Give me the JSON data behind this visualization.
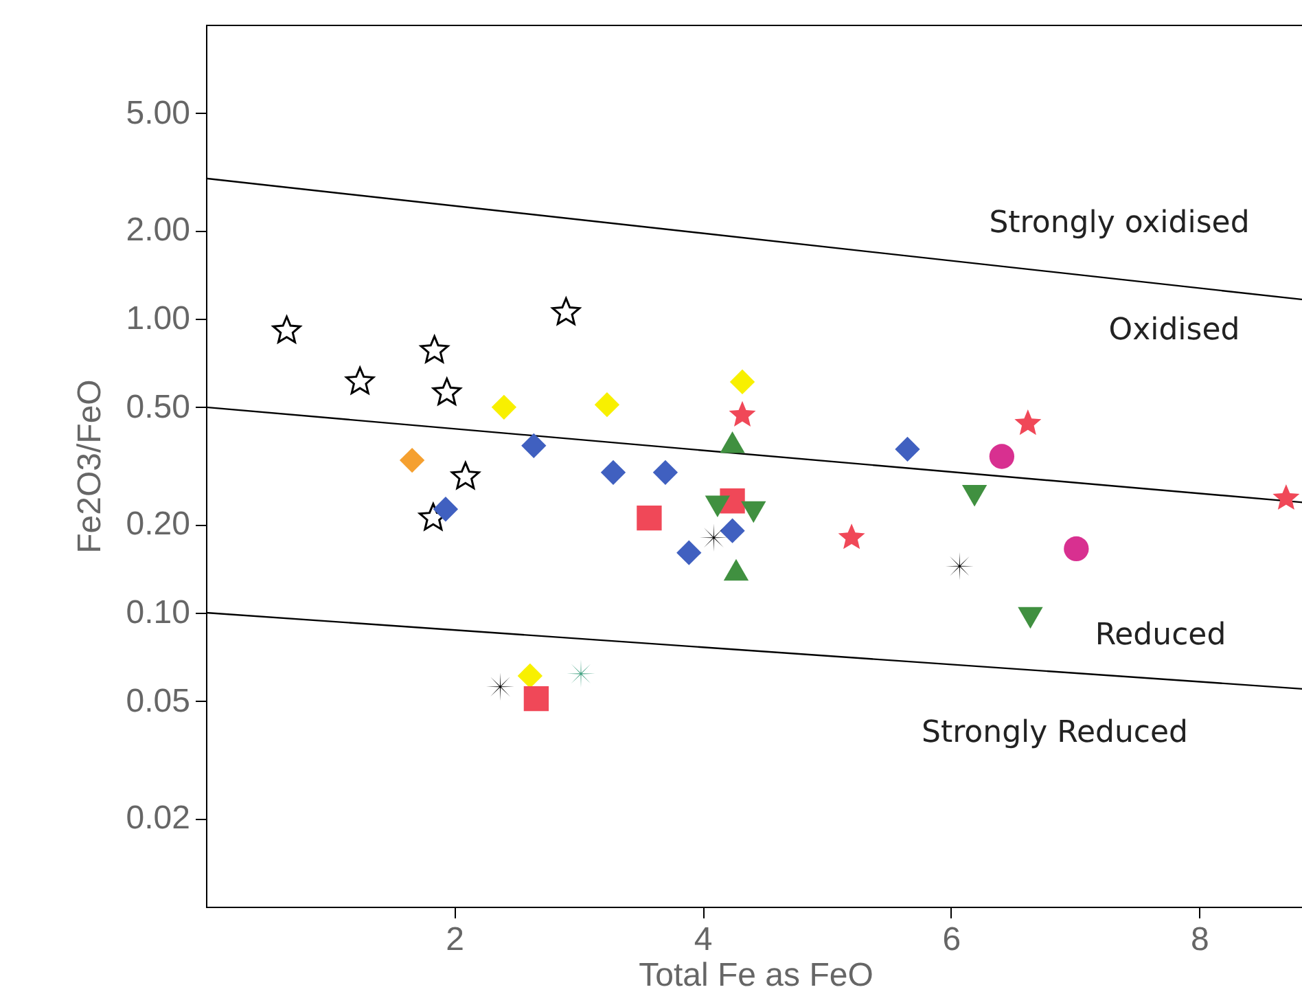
{
  "chart_data": {
    "type": "scatter",
    "xlabel": "Total Fe as FeO",
    "ylabel": "Fe2O3/FeO",
    "log": "y",
    "grid": false,
    "xlim": [
      0,
      8.85
    ],
    "xticks": [
      2,
      4,
      6,
      8
    ],
    "ylim": [
      0.01,
      10
    ],
    "yticks": [
      {
        "value": 0.02,
        "label": "0.02"
      },
      {
        "value": 0.05,
        "label": "0.05"
      },
      {
        "value": 0.1,
        "label": "0.10"
      },
      {
        "value": 0.2,
        "label": "0.20"
      },
      {
        "value": 0.5,
        "label": "0.50"
      },
      {
        "value": 1,
        "label": "1.00"
      },
      {
        "value": 2,
        "label": "2.00"
      },
      {
        "value": 5,
        "label": "5.00"
      }
    ],
    "series": [
      {
        "type": "line",
        "marker": "none",
        "line_style": "solid",
        "color": "#000000",
        "x": [
          0,
          8.85
        ],
        "values": [
          3.0,
          1.16
        ]
      },
      {
        "type": "line",
        "marker": "none",
        "line_style": "solid",
        "color": "#000000",
        "x": [
          0,
          8.85
        ],
        "values": [
          0.5,
          0.237
        ]
      },
      {
        "type": "line",
        "marker": "none",
        "line_style": "solid",
        "color": "#000000",
        "x": [
          0,
          8.85
        ],
        "values": [
          0.1,
          0.055
        ]
      },
      {
        "marker": "star",
        "color": "#ffffff",
        "x": [
          0.65,
          1.24,
          1.84,
          1.94,
          2.09,
          1.83,
          2.9
        ],
        "values": [
          0.91,
          0.61,
          0.78,
          0.56,
          0.29,
          0.21,
          1.05
        ]
      },
      {
        "marker": "diamond",
        "color": "#f5a030",
        "x": [
          1.66
        ],
        "values": [
          0.33
        ]
      },
      {
        "marker": "diamond",
        "color": "#f8f000",
        "x": [
          2.4,
          3.23,
          4.32,
          2.61
        ],
        "values": [
          0.5,
          0.51,
          0.61,
          0.061
        ]
      },
      {
        "marker": "square",
        "color": "#f04858",
        "x": [
          3.57,
          4.24,
          2.66
        ],
        "values": [
          0.21,
          0.24,
          0.051
        ]
      },
      {
        "marker": "diamond",
        "color": "#4060c0",
        "x": [
          1.93,
          2.64,
          3.28,
          3.7,
          3.89,
          4.24,
          5.65
        ],
        "values": [
          0.225,
          0.37,
          0.3,
          0.3,
          0.16,
          0.19,
          0.36
        ]
      },
      {
        "marker": "star",
        "color": "#f04858",
        "x": [
          4.32,
          5.2,
          6.62,
          8.7
        ],
        "values": [
          0.47,
          0.18,
          0.44,
          0.245
        ]
      },
      {
        "marker": "triangle",
        "color": "#409040",
        "x": [
          4.24,
          4.27
        ],
        "values": [
          0.38,
          0.14
        ]
      },
      {
        "marker": "triangle-down",
        "color": "#409040",
        "x": [
          4.12,
          4.41,
          6.19,
          6.64
        ],
        "values": [
          0.23,
          0.22,
          0.25,
          0.096
        ]
      },
      {
        "marker": "circle",
        "color": "#d83090",
        "x": [
          6.41,
          7.01
        ],
        "values": [
          0.34,
          0.165
        ]
      },
      {
        "marker": "cross",
        "color": "#000000",
        "x": [
          4.09,
          6.07,
          2.37
        ],
        "values": [
          0.18,
          0.144,
          0.056
        ]
      },
      {
        "marker": "cross",
        "color": "#40a080",
        "x": [
          3.02
        ],
        "values": [
          0.062
        ]
      }
    ],
    "annotations": [
      "Strongly oxidised",
      "Oxidised",
      "Reduced",
      "Strongly Reduced"
    ]
  }
}
